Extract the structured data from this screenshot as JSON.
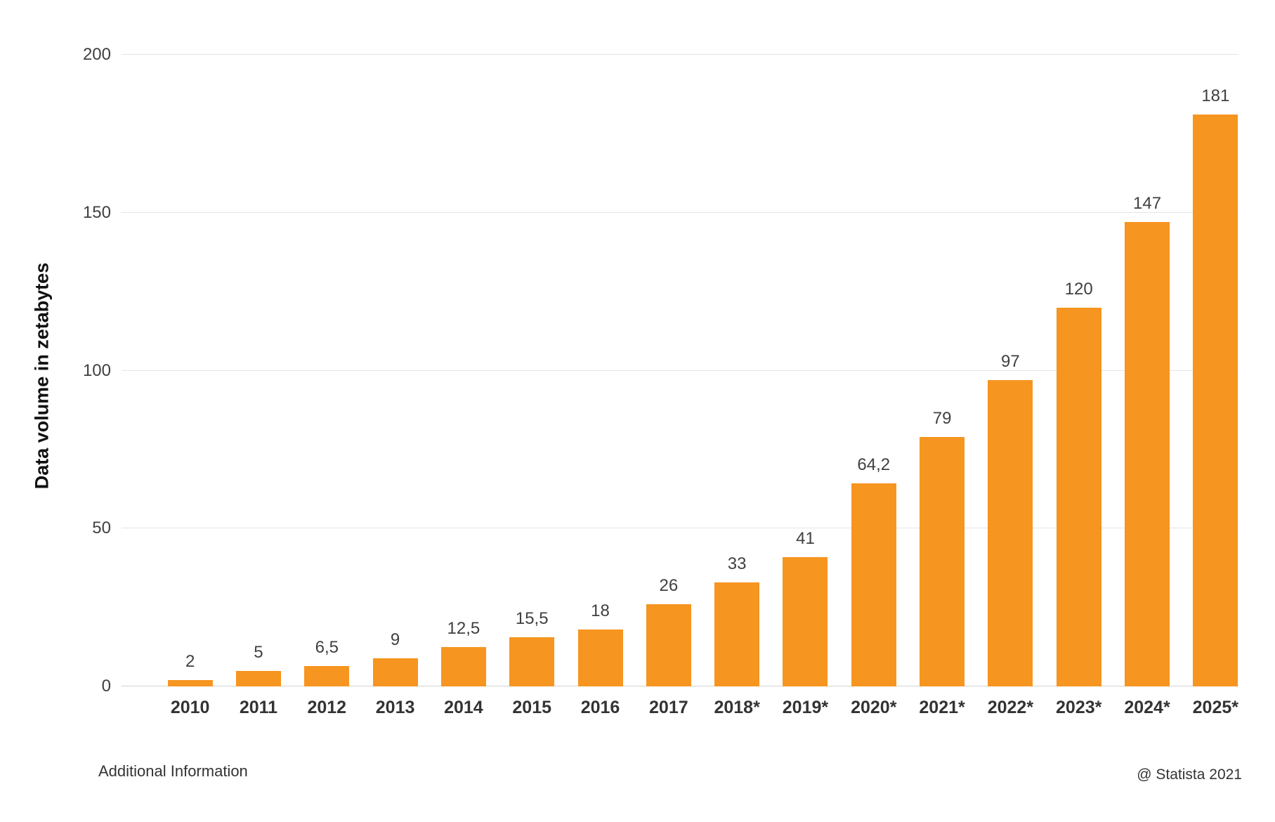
{
  "chart_data": {
    "type": "bar",
    "title": "",
    "xlabel": "",
    "ylabel": "Data volume in zetabytes",
    "ylim": [
      0,
      200
    ],
    "yticks": [
      0,
      50,
      100,
      150,
      200
    ],
    "grid": true,
    "legend": false,
    "bar_color": "#F6951F",
    "categories": [
      "2010",
      "2011",
      "2012",
      "2013",
      "2014",
      "2015",
      "2016",
      "2017",
      "2018*",
      "2019*",
      "2020*",
      "2021*",
      "2022*",
      "2023*",
      "2024*",
      "2025*"
    ],
    "values": [
      2,
      5,
      6.5,
      9,
      12.5,
      15.5,
      18,
      26,
      33,
      41,
      64.2,
      79,
      97,
      120,
      147,
      181
    ],
    "value_labels": [
      "2",
      "5",
      "6,5",
      "9",
      "12,5",
      "15,5",
      "18",
      "26",
      "33",
      "41",
      "64,2",
      "79",
      "97",
      "120",
      "147",
      "181"
    ]
  },
  "footer": {
    "additional_info_label": "Additional Information",
    "attribution": "@ Statista 2021"
  },
  "colors": {
    "bar": "#F6951F",
    "gridline": "#E4E4E4",
    "axis_line": "#D2D2D2",
    "text": "#404040"
  }
}
